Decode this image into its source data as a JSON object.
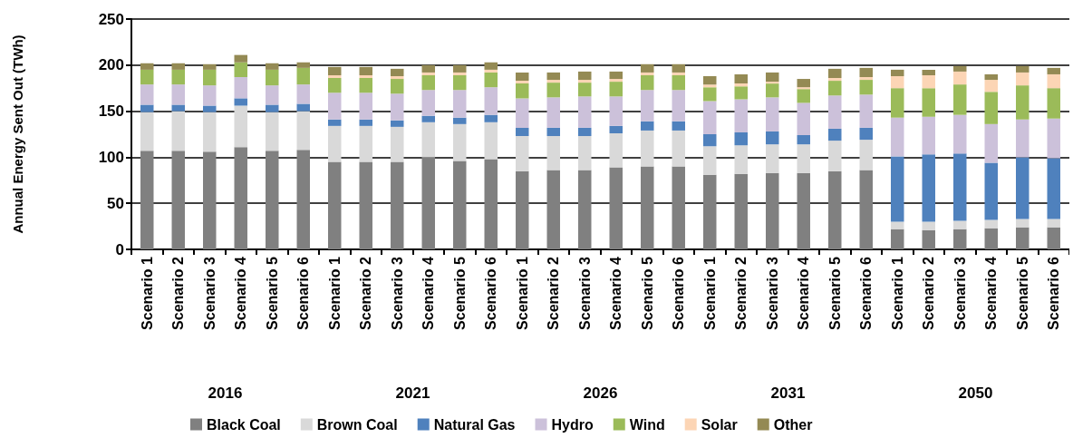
{
  "chart_data": [
    {
      "type": "bar",
      "stacked": true,
      "xlabel": "2016",
      "ylabel": "Annual Energy Sent Out (TWh)",
      "categories": [
        "Scenario 1",
        "Scenario 2",
        "Scenario 3",
        "Scenario 4",
        "Scenario 5",
        "Scenario 6"
      ],
      "ylim": [
        0,
        250
      ],
      "yticks": [
        0,
        50,
        100,
        150,
        200,
        250
      ],
      "grid": "y",
      "legend": "bottom",
      "series": [
        {
          "name": "Black Coal",
          "color": "#808080",
          "values": [
            107,
            107,
            106,
            111,
            107,
            108
          ]
        },
        {
          "name": "Brown Coal",
          "color": "#d9d9d9",
          "values": [
            42,
            43,
            43,
            45,
            42,
            42
          ]
        },
        {
          "name": "Natural Gas",
          "color": "#4f81bd",
          "values": [
            8,
            7,
            7,
            8,
            8,
            8
          ]
        },
        {
          "name": "Hydro",
          "color": "#ccc1da",
          "values": [
            22,
            22,
            22,
            23,
            21,
            21
          ]
        },
        {
          "name": "Wind",
          "color": "#9bbb59",
          "values": [
            16,
            16,
            17,
            16,
            17,
            18
          ]
        },
        {
          "name": "Solar",
          "color": "#fcd5b5",
          "values": [
            0,
            0,
            0,
            0,
            0,
            0
          ]
        },
        {
          "name": "Other",
          "color": "#948a54",
          "values": [
            7,
            7,
            6,
            8,
            7,
            6
          ]
        }
      ]
    },
    {
      "type": "bar",
      "stacked": true,
      "xlabel": "2021",
      "categories": [
        "Scenario 1",
        "Scenario 2",
        "Scenario 3",
        "Scenario 4",
        "Scenario 5",
        "Scenario 6"
      ],
      "ylim": [
        0,
        250
      ],
      "yticks": [
        0,
        50,
        100,
        150,
        200,
        250
      ],
      "grid": "y",
      "tick_labels": "x",
      "series": [
        {
          "color": "#808080",
          "values": [
            95,
            95,
            95,
            100,
            96,
            98
          ]
        },
        {
          "color": "#d9d9d9",
          "values": [
            39,
            39,
            38,
            38,
            40,
            40
          ]
        },
        {
          "color": "#4f81bd",
          "values": [
            7,
            7,
            7,
            7,
            7,
            8
          ]
        },
        {
          "color": "#ccc1da",
          "values": [
            29,
            29,
            29,
            28,
            30,
            30
          ]
        },
        {
          "color": "#9bbb59",
          "values": [
            16,
            16,
            16,
            16,
            16,
            16
          ]
        },
        {
          "color": "#fcd5b5",
          "values": [
            3,
            3,
            3,
            3,
            3,
            3
          ]
        },
        {
          "color": "#948a54",
          "values": [
            9,
            9,
            8,
            8,
            8,
            8
          ]
        }
      ]
    },
    {
      "type": "bar",
      "stacked": true,
      "xlabel": "2026",
      "categories": [
        "Scenario 1",
        "Scenario 2",
        "Scenario 3",
        "Scenario 4",
        "Scenario 5",
        "Scenario 6"
      ],
      "ylim": [
        0,
        250
      ],
      "yticks": [
        0,
        50,
        100,
        150,
        200,
        250
      ],
      "grid": "y",
      "tick_labels": "x",
      "series": [
        {
          "color": "#808080",
          "values": [
            85,
            86,
            86,
            89,
            90,
            90
          ]
        },
        {
          "color": "#d9d9d9",
          "values": [
            38,
            37,
            37,
            37,
            39,
            39
          ]
        },
        {
          "color": "#4f81bd",
          "values": [
            9,
            9,
            9,
            8,
            10,
            10
          ]
        },
        {
          "color": "#ccc1da",
          "values": [
            32,
            33,
            34,
            32,
            34,
            34
          ]
        },
        {
          "color": "#9bbb59",
          "values": [
            16,
            16,
            15,
            16,
            16,
            16
          ]
        },
        {
          "color": "#fcd5b5",
          "values": [
            3,
            3,
            3,
            3,
            3,
            3
          ]
        },
        {
          "color": "#948a54",
          "values": [
            9,
            8,
            9,
            8,
            9,
            9
          ]
        }
      ]
    },
    {
      "type": "bar",
      "stacked": true,
      "xlabel": "2031",
      "categories": [
        "Scenario 1",
        "Scenario 2",
        "Scenario 3",
        "Scenario 4",
        "Scenario 5",
        "Scenario 6"
      ],
      "ylim": [
        0,
        250
      ],
      "yticks": [
        0,
        50,
        100,
        150,
        200,
        250
      ],
      "grid": "y",
      "tick_labels": "x",
      "series": [
        {
          "color": "#808080",
          "values": [
            81,
            82,
            83,
            83,
            85,
            86
          ]
        },
        {
          "color": "#d9d9d9",
          "values": [
            31,
            31,
            31,
            31,
            33,
            33
          ]
        },
        {
          "color": "#4f81bd",
          "values": [
            13,
            14,
            14,
            10,
            13,
            13
          ]
        },
        {
          "color": "#ccc1da",
          "values": [
            36,
            36,
            37,
            35,
            36,
            36
          ]
        },
        {
          "color": "#9bbb59",
          "values": [
            15,
            14,
            15,
            15,
            16,
            16
          ]
        },
        {
          "color": "#fcd5b5",
          "values": [
            3,
            3,
            2,
            2,
            3,
            3
          ]
        },
        {
          "color": "#948a54",
          "values": [
            9,
            10,
            10,
            9,
            10,
            10
          ]
        }
      ]
    },
    {
      "type": "bar",
      "stacked": true,
      "xlabel": "2050",
      "categories": [
        "Scenario 1",
        "Scenario 2",
        "Scenario 3",
        "Scenario 4",
        "Scenario 5",
        "Scenario 6"
      ],
      "ylim": [
        0,
        250
      ],
      "yticks": [
        0,
        50,
        100,
        150,
        200,
        250
      ],
      "grid": "y",
      "tick_labels": "x",
      "series": [
        {
          "color": "#808080",
          "values": [
            22,
            21,
            22,
            23,
            24,
            24
          ]
        },
        {
          "color": "#d9d9d9",
          "values": [
            8,
            9,
            9,
            9,
            9,
            9
          ]
        },
        {
          "color": "#4f81bd",
          "values": [
            71,
            73,
            73,
            62,
            67,
            66
          ]
        },
        {
          "color": "#ccc1da",
          "values": [
            42,
            41,
            42,
            42,
            41,
            43
          ]
        },
        {
          "color": "#9bbb59",
          "values": [
            32,
            31,
            33,
            35,
            37,
            33
          ]
        },
        {
          "color": "#fcd5b5",
          "values": [
            13,
            14,
            14,
            13,
            14,
            15
          ]
        },
        {
          "color": "#948a54",
          "values": [
            7,
            6,
            6,
            6,
            7,
            7
          ]
        }
      ]
    }
  ]
}
